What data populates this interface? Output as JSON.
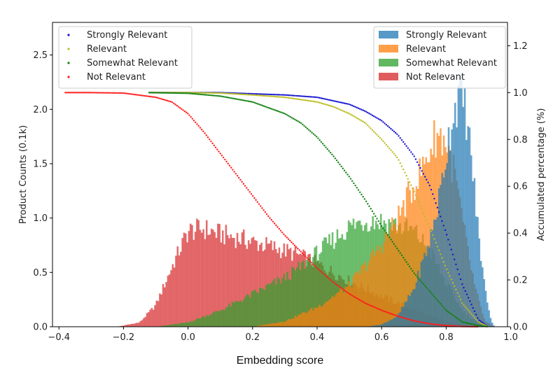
{
  "chart_data": {
    "type": "histogram-with-cumulative-curves",
    "xlabel": "Embedding score",
    "ylabel_left": "Product Counts (0.1k)",
    "ylabel_right": "Accumulated percentage (%)",
    "xlim": [
      -0.42,
      0.99
    ],
    "ylim_left": [
      0,
      2.8
    ],
    "ylim_right": [
      0,
      1.3
    ],
    "xticks": [
      "−0.4",
      "−0.2",
      "0.0",
      "0.2",
      "0.4",
      "0.6",
      "0.8",
      "1.0"
    ],
    "xtick_values": [
      -0.4,
      -0.2,
      0.0,
      0.2,
      0.4,
      0.6,
      0.8,
      1.0
    ],
    "yticks_left": [
      "0.0",
      "0.5",
      "1.0",
      "1.5",
      "2.0",
      "2.5"
    ],
    "ytick_values_left": [
      0,
      0.5,
      1.0,
      1.5,
      2.0,
      2.5
    ],
    "yticks_right": [
      "0.0",
      "0.2",
      "0.4",
      "0.6",
      "0.8",
      "1.0",
      "1.2"
    ],
    "ytick_values_right": [
      0,
      0.2,
      0.4,
      0.6,
      0.8,
      1.0,
      1.2
    ],
    "histogram_series": [
      {
        "name": "Strongly Relevant",
        "color": "#1f77b4",
        "x": [
          0.55,
          0.6,
          0.65,
          0.7,
          0.75,
          0.78,
          0.8,
          0.82,
          0.84,
          0.86,
          0.88,
          0.9,
          0.92,
          0.94,
          0.95
        ],
        "y": [
          0.0,
          0.02,
          0.1,
          0.35,
          0.8,
          1.2,
          1.6,
          1.95,
          2.15,
          2.0,
          1.5,
          0.85,
          0.35,
          0.05,
          0.0
        ]
      },
      {
        "name": "Relevant",
        "color": "#ff7f0e",
        "x": [
          0.2,
          0.3,
          0.4,
          0.5,
          0.6,
          0.65,
          0.7,
          0.74,
          0.77,
          0.8,
          0.83,
          0.86,
          0.89,
          0.92,
          0.95
        ],
        "y": [
          0.0,
          0.05,
          0.18,
          0.38,
          0.75,
          1.0,
          1.3,
          1.55,
          1.78,
          1.7,
          1.35,
          0.8,
          0.35,
          0.05,
          0.0
        ]
      },
      {
        "name": "Somewhat Relevant",
        "color": "#2ca02c",
        "x": [
          -0.1,
          0.0,
          0.1,
          0.2,
          0.3,
          0.35,
          0.4,
          0.45,
          0.5,
          0.55,
          0.6,
          0.65,
          0.7,
          0.75,
          0.8,
          0.85,
          0.9,
          0.93
        ],
        "y": [
          0.0,
          0.04,
          0.15,
          0.3,
          0.45,
          0.55,
          0.68,
          0.8,
          0.92,
          0.98,
          0.97,
          0.93,
          0.88,
          0.7,
          0.4,
          0.15,
          0.03,
          0.0
        ]
      },
      {
        "name": "Not Relevant",
        "color": "#d62728",
        "x": [
          -0.22,
          -0.15,
          -0.1,
          -0.05,
          0.0,
          0.05,
          0.1,
          0.15,
          0.2,
          0.25,
          0.3,
          0.35,
          0.4,
          0.45,
          0.5,
          0.55,
          0.6,
          0.65,
          0.7,
          0.75,
          0.8,
          0.85,
          0.9
        ],
        "y": [
          0.0,
          0.04,
          0.2,
          0.55,
          0.88,
          0.9,
          0.85,
          0.82,
          0.78,
          0.74,
          0.7,
          0.65,
          0.58,
          0.5,
          0.42,
          0.35,
          0.28,
          0.22,
          0.16,
          0.1,
          0.05,
          0.02,
          0.0
        ]
      }
    ],
    "cumulative_series": [
      {
        "name": "Strongly Relevant",
        "color": "#1515d0",
        "x": [
          -0.12,
          0.0,
          0.1,
          0.2,
          0.3,
          0.4,
          0.5,
          0.55,
          0.6,
          0.65,
          0.7,
          0.75,
          0.8,
          0.85,
          0.9,
          0.93
        ],
        "y": [
          1.0,
          1.0,
          1.0,
          0.995,
          0.99,
          0.98,
          0.95,
          0.92,
          0.88,
          0.82,
          0.73,
          0.6,
          0.4,
          0.18,
          0.03,
          0.0
        ]
      },
      {
        "name": "Relevant",
        "color": "#bcbd22",
        "x": [
          -0.12,
          0.0,
          0.1,
          0.2,
          0.3,
          0.4,
          0.45,
          0.5,
          0.55,
          0.6,
          0.65,
          0.7,
          0.75,
          0.8,
          0.85,
          0.9,
          0.93
        ],
        "y": [
          1.0,
          1.0,
          0.998,
          0.99,
          0.98,
          0.96,
          0.94,
          0.91,
          0.87,
          0.8,
          0.72,
          0.58,
          0.42,
          0.25,
          0.1,
          0.02,
          0.0
        ]
      },
      {
        "name": "Somewhat Relevant",
        "color": "#128212",
        "x": [
          -0.12,
          0.0,
          0.1,
          0.2,
          0.3,
          0.35,
          0.4,
          0.45,
          0.5,
          0.55,
          0.6,
          0.65,
          0.7,
          0.75,
          0.8,
          0.85,
          0.9,
          0.93
        ],
        "y": [
          1.0,
          0.997,
          0.985,
          0.96,
          0.91,
          0.87,
          0.81,
          0.73,
          0.64,
          0.54,
          0.43,
          0.33,
          0.23,
          0.15,
          0.07,
          0.02,
          0.005,
          0.0
        ]
      },
      {
        "name": "Not Relevant",
        "color": "#ff1c1c",
        "x": [
          -0.38,
          -0.3,
          -0.2,
          -0.1,
          -0.05,
          0.0,
          0.05,
          0.1,
          0.15,
          0.2,
          0.25,
          0.3,
          0.35,
          0.4,
          0.45,
          0.5,
          0.55,
          0.6,
          0.65,
          0.7,
          0.75,
          0.8,
          0.85,
          0.9
        ],
        "y": [
          1.0,
          1.0,
          0.998,
          0.98,
          0.96,
          0.91,
          0.83,
          0.74,
          0.65,
          0.56,
          0.47,
          0.39,
          0.32,
          0.25,
          0.19,
          0.14,
          0.1,
          0.07,
          0.045,
          0.025,
          0.012,
          0.005,
          0.001,
          0.0
        ]
      }
    ],
    "legend_left": [
      "Strongly Relevant",
      "Relevant",
      "Somewhat Relevant",
      "Not Relevant"
    ],
    "legend_right": [
      "Strongly Relevant",
      "Relevant",
      "Somewhat Relevant",
      "Not Relevant"
    ],
    "legend_left_placement": "top-left",
    "legend_right_placement": "top-right"
  }
}
